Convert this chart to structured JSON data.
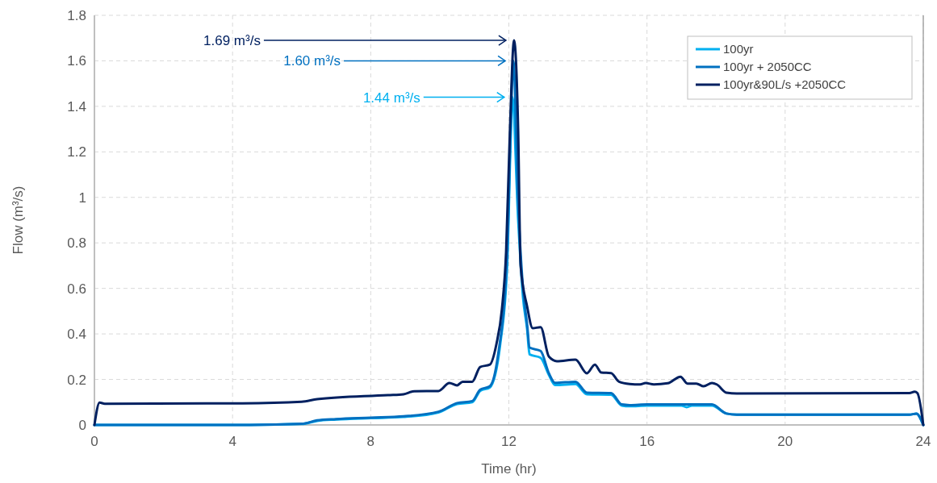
{
  "chart_data": {
    "type": "line",
    "xlabel": "Time (hr)",
    "ylabel": "Flow (m³/s)",
    "xlim": [
      0,
      24
    ],
    "xticks": [
      0,
      4,
      8,
      12,
      16,
      20,
      24
    ],
    "ylim": [
      0,
      1.8
    ],
    "yticks": [
      0,
      0.2,
      0.4,
      0.6,
      0.8,
      1,
      1.2,
      1.4,
      1.6,
      1.8
    ],
    "grid": true,
    "legend": "top right",
    "line_style": "solid",
    "marker": "none",
    "annotations": [
      "1.69 m³/s",
      "1.60 m³/s",
      "1.44 m³/s"
    ],
    "series": [
      {
        "name": "100yr",
        "color": "#00b0f0",
        "x": [
          0,
          4.5,
          6,
          6.45,
          7,
          8,
          8.95,
          9.96,
          10.5,
          10.94,
          11.17,
          11.45,
          11.75,
          11.95,
          12.06,
          12.1,
          12.27,
          12.41,
          12.53,
          12.6,
          12.92,
          13.16,
          13.34,
          13.93,
          14.26,
          14.96,
          15.27,
          15.5,
          16,
          17,
          17.15,
          17.3,
          17.88,
          18.3,
          18.6,
          23.6,
          23.8,
          24
        ],
        "values": [
          0,
          0,
          0.004,
          0.018,
          0.024,
          0.03,
          0.035,
          0.055,
          0.092,
          0.1,
          0.15,
          0.165,
          0.355,
          0.7,
          1.29,
          1.44,
          0.9,
          0.56,
          0.42,
          0.31,
          0.295,
          0.22,
          0.175,
          0.18,
          0.135,
          0.133,
          0.085,
          0.082,
          0.085,
          0.085,
          0.078,
          0.085,
          0.085,
          0.05,
          0.045,
          0.045,
          0.05,
          0
        ]
      },
      {
        "name": "100yr + 2050CC",
        "color": "#0070c0",
        "x": [
          0,
          4.5,
          6,
          6.45,
          7,
          8,
          8.95,
          9.96,
          10.5,
          10.94,
          11.17,
          11.45,
          11.68,
          11.95,
          12.06,
          12.13,
          12.27,
          12.41,
          12.53,
          12.6,
          12.92,
          13.16,
          13.34,
          13.93,
          14.26,
          14.96,
          15.27,
          15.5,
          16,
          17,
          17.88,
          18.3,
          18.6,
          23.6,
          23.8,
          24
        ],
        "values": [
          0,
          0,
          0.005,
          0.02,
          0.026,
          0.032,
          0.038,
          0.058,
          0.096,
          0.105,
          0.155,
          0.17,
          0.3,
          0.75,
          1.35,
          1.6,
          0.97,
          0.6,
          0.44,
          0.34,
          0.325,
          0.227,
          0.185,
          0.19,
          0.142,
          0.14,
          0.09,
          0.087,
          0.09,
          0.09,
          0.09,
          0.05,
          0.045,
          0.045,
          0.05,
          0
        ]
      },
      {
        "name": "100yr&90L/s +2050CC",
        "color": "#002060",
        "x": [
          0,
          0.15,
          0.3,
          4.28,
          6,
          6.45,
          8.5,
          8.95,
          9.26,
          9.96,
          10.28,
          10.5,
          10.66,
          10.94,
          11.17,
          11.45,
          11.64,
          11.8,
          11.92,
          12.03,
          12.15,
          12.27,
          12.34,
          12.53,
          12.69,
          12.92,
          13.16,
          13.39,
          13.93,
          14.26,
          14.49,
          14.68,
          14.96,
          15.19,
          15.5,
          15.8,
          15.96,
          16.2,
          16.6,
          16.97,
          17.17,
          17.43,
          17.64,
          17.88,
          18.02,
          18.3,
          18.6,
          23.6,
          23.75,
          23.83,
          24
        ],
        "values": [
          0,
          0.098,
          0.093,
          0.095,
          0.102,
          0.113,
          0.131,
          0.135,
          0.148,
          0.149,
          0.184,
          0.174,
          0.19,
          0.19,
          0.255,
          0.265,
          0.355,
          0.51,
          0.76,
          1.29,
          1.69,
          1.29,
          0.7,
          0.52,
          0.425,
          0.43,
          0.3,
          0.28,
          0.287,
          0.227,
          0.265,
          0.23,
          0.228,
          0.19,
          0.18,
          0.178,
          0.184,
          0.178,
          0.183,
          0.212,
          0.182,
          0.182,
          0.17,
          0.184,
          0.178,
          0.142,
          0.138,
          0.14,
          0.146,
          0.14,
          0
        ]
      }
    ]
  }
}
